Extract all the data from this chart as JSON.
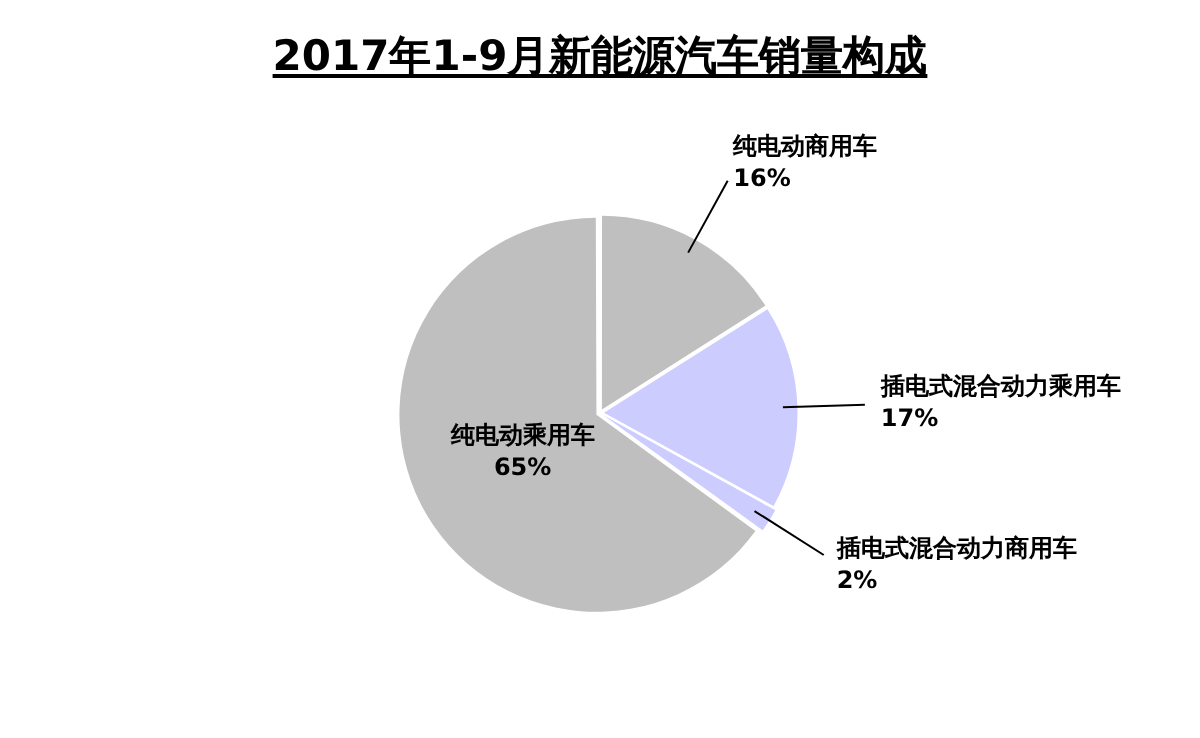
{
  "chart_data": {
    "type": "pie",
    "title": "2017年1-9月新能源汽车销量构成",
    "categories": [
      "纯电动商用车",
      "插电式混合动力乘用车",
      "插电式混合动力商用车",
      "纯电动乘用车"
    ],
    "values": [
      16,
      17,
      2,
      65
    ],
    "value_labels": [
      "16%",
      "17%",
      "2%",
      "65%"
    ],
    "colors": [
      "#bfbfbf",
      "#ccccff",
      "#ccccff",
      "#bfbfbf"
    ],
    "legend": false
  }
}
